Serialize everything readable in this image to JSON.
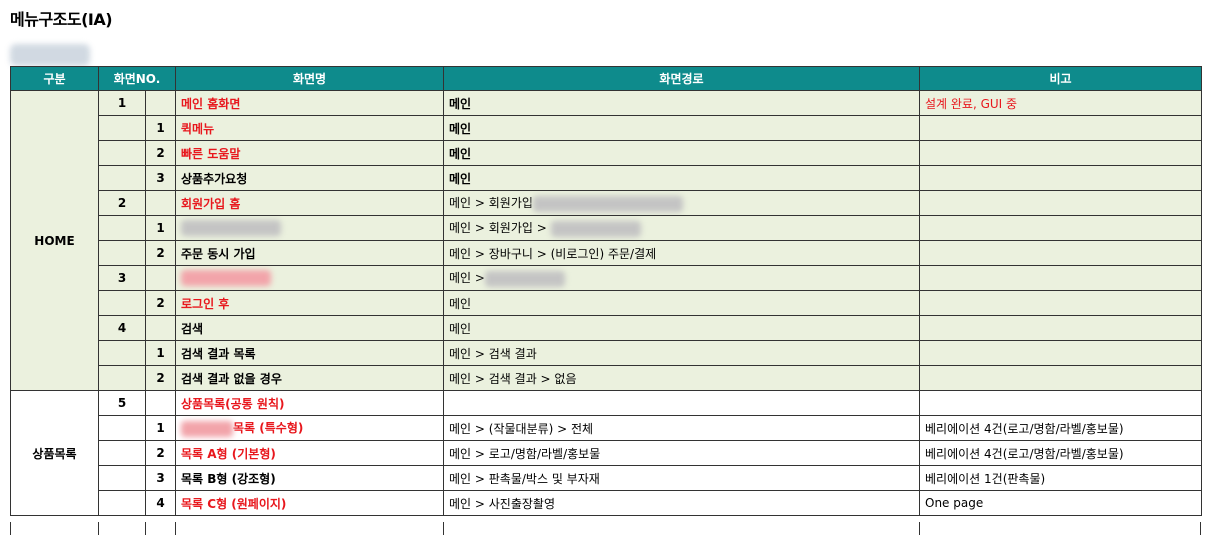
{
  "title": "메뉴구조도(IA)",
  "headers": {
    "section": "구분",
    "screen_no": "화면NO.",
    "screen_name": "화면명",
    "path": "화면경로",
    "note": "비고"
  },
  "groups": {
    "home": "HOME",
    "products": "상품목록"
  },
  "rows": [
    {
      "n1": "1",
      "n2": "",
      "name": "메인 홈화면",
      "red": true,
      "path": "메인",
      "path_bold": true,
      "note": "설계 완료, GUI 중",
      "note_red": true
    },
    {
      "n1": "",
      "n2": "1",
      "name": "퀵메뉴",
      "red": true,
      "path": "메인",
      "path_bold": true,
      "note": ""
    },
    {
      "n1": "",
      "n2": "2",
      "name": "빠른 도움말",
      "red": true,
      "path": "메인",
      "path_bold": true,
      "note": ""
    },
    {
      "n1": "",
      "n2": "3",
      "name": "상품추가요청",
      "red": false,
      "path": "메인",
      "path_bold": true,
      "note": ""
    },
    {
      "n1": "2",
      "n2": "",
      "name": "회원가입 홈",
      "red": true,
      "path": "메인 > 회원가입",
      "note": ""
    },
    {
      "n1": "",
      "n2": "1",
      "name": "",
      "red": false,
      "path": "메인 > 회원가입 >",
      "note": ""
    },
    {
      "n1": "",
      "n2": "2",
      "name": "주문 동시 가입",
      "red": false,
      "path": "메인 > 장바구니 > (비로그인) 주문/결제",
      "note": ""
    },
    {
      "n1": "3",
      "n2": "",
      "name": "",
      "red": true,
      "path": "메인 >",
      "note": ""
    },
    {
      "n1": "",
      "n2": "2",
      "name": "로그인 후",
      "red": true,
      "path": "메인",
      "note": ""
    },
    {
      "n1": "4",
      "n2": "",
      "name": "검색",
      "red": false,
      "path": "메인",
      "note": ""
    },
    {
      "n1": "",
      "n2": "1",
      "name": "검색 결과 목록",
      "red": false,
      "path": "메인 > 검색 결과",
      "note": ""
    },
    {
      "n1": "",
      "n2": "2",
      "name": "검색 결과 없을 경우",
      "red": false,
      "path": "메인 > 검색 결과 > 없음",
      "note": ""
    },
    {
      "n1": "5",
      "n2": "",
      "name": "상품목록(공통 원칙)",
      "red": true,
      "path": "",
      "note": ""
    },
    {
      "n1": "",
      "n2": "1",
      "name": "목록 (특수형)",
      "red": true,
      "path": "메인 > (작물대분류) > 전체",
      "note": "베리에이션 4건(로고/명함/라벨/홍보물)"
    },
    {
      "n1": "",
      "n2": "2",
      "name": "목록 A형 (기본형)",
      "red": true,
      "path": "메인 > 로고/명함/라벨/홍보물",
      "note": "베리에이션 4건(로고/명함/라벨/홍보물)"
    },
    {
      "n1": "",
      "n2": "3",
      "name": "목록 B형 (강조형)",
      "red": false,
      "path": "메인 > 판촉물/박스 및 부자재",
      "note": "베리에이션 1건(판촉물)"
    },
    {
      "n1": "",
      "n2": "4",
      "name": "목록 C형 (원페이지)",
      "red": true,
      "path": "메인 > 사진출장촬영",
      "note": "One page"
    }
  ]
}
